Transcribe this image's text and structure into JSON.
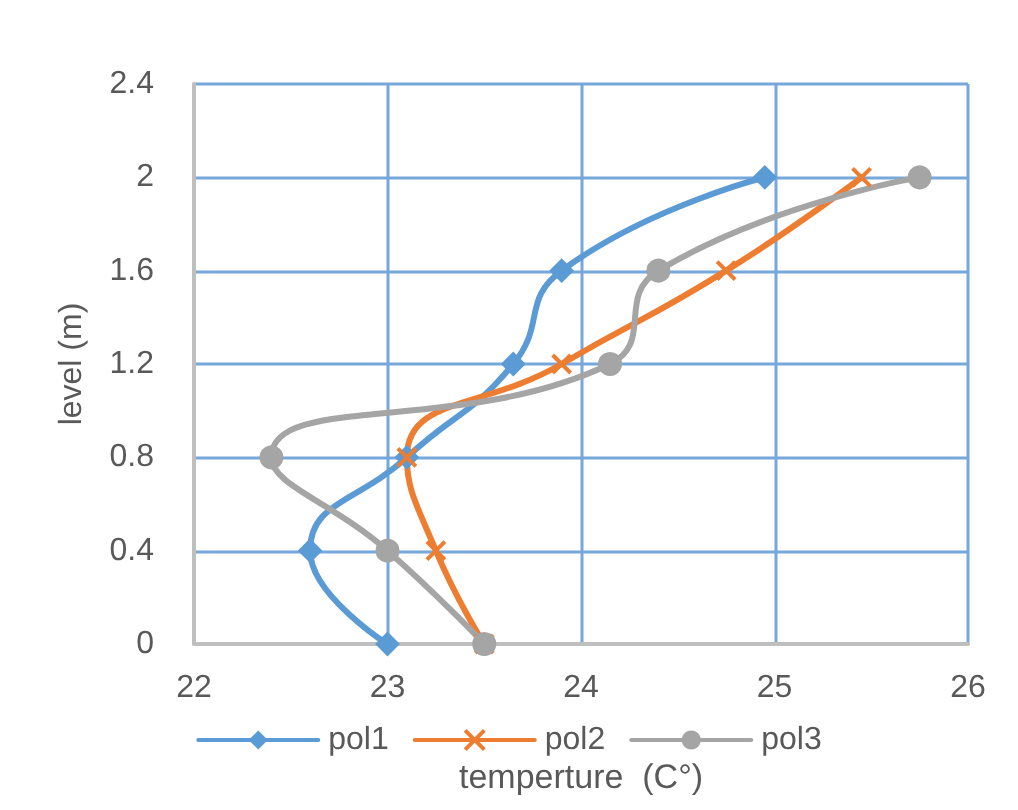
{
  "chart_data": {
    "type": "line",
    "xlabel": "temperture  (C°)",
    "ylabel": "level (m)",
    "xlim": [
      22,
      26
    ],
    "xticks": [
      22,
      23,
      24,
      25,
      26
    ],
    "ylim": [
      0,
      2.4
    ],
    "yticks": [
      0,
      0.4,
      0.8,
      1.2,
      1.6,
      2,
      2.4
    ],
    "grid": true,
    "legend": "bottom",
    "series": [
      {
        "name": "pol1",
        "color": "#5b9bd5",
        "marker": "diamond",
        "x": [
          23.0,
          22.6,
          23.1,
          23.65,
          23.9,
          24.95
        ],
        "values": [
          0,
          0.4,
          0.8,
          1.2,
          1.6,
          2
        ]
      },
      {
        "name": "pol2",
        "color": "#ed7d31",
        "marker": "cross",
        "x": [
          23.5,
          23.25,
          23.1,
          23.9,
          24.75,
          25.45
        ],
        "values": [
          0,
          0.4,
          0.8,
          1.2,
          1.6,
          2
        ]
      },
      {
        "name": "pol3",
        "color": "#a5a5a5",
        "marker": "circle",
        "x": [
          23.5,
          23.0,
          22.4,
          24.15,
          24.4,
          25.75
        ],
        "values": [
          0,
          0.4,
          0.8,
          1.2,
          1.6,
          2
        ]
      }
    ]
  }
}
